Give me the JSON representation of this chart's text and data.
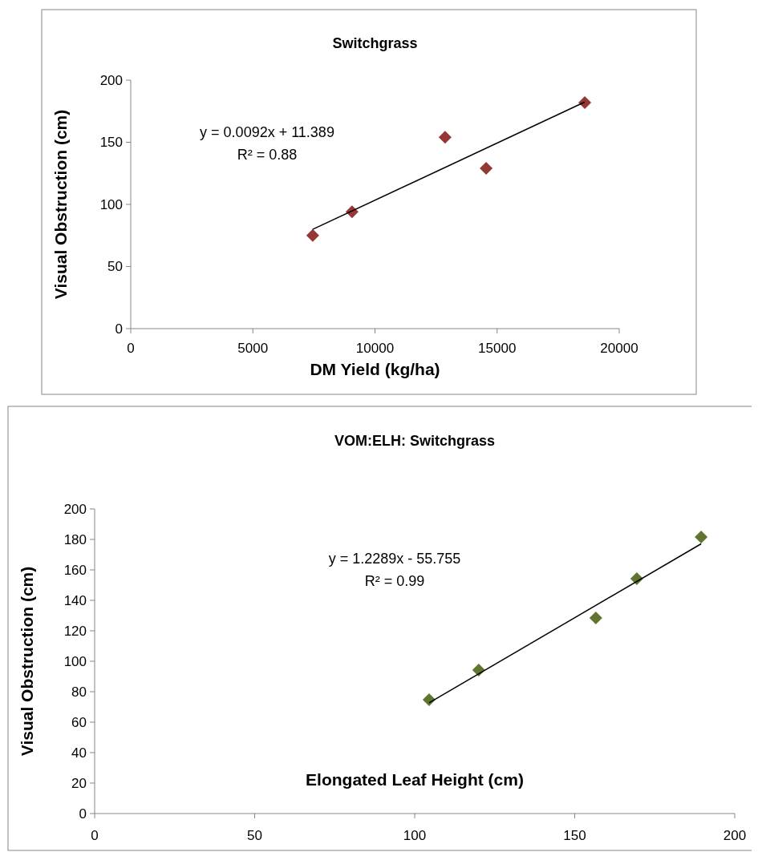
{
  "chart_data": [
    {
      "type": "scatter",
      "title": "Switchgrass",
      "xlabel": "DM Yield (kg/ha)",
      "ylabel": "Visual Obstruction (cm)",
      "xlim": [
        0,
        20000
      ],
      "xticks": [
        0,
        5000,
        10000,
        15000,
        20000
      ],
      "ylim": [
        0,
        200
      ],
      "yticks": [
        0,
        50,
        100,
        150,
        200
      ],
      "annotations": [
        "y = 0.0092x + 11.389",
        "R² = 0.88"
      ],
      "series": [
        {
          "color": "#953735",
          "marker": "diamond",
          "x": [
            7450,
            9060,
            12870,
            14550,
            18590
          ],
          "values": [
            75,
            94,
            154,
            129,
            182
          ]
        },
        {
          "type": "line",
          "marker": "none",
          "color": "#000000",
          "x": [
            7450,
            18590
          ],
          "values": [
            79.9,
            182.4
          ]
        }
      ]
    },
    {
      "type": "scatter",
      "title": "VOM:ELH: Switchgrass",
      "xlabel": "Elongated Leaf Height (cm)",
      "ylabel": "Visual Obstruction (cm)",
      "xlim": [
        0,
        200
      ],
      "xticks": [
        0,
        50,
        100,
        150,
        200
      ],
      "ylim": [
        0,
        200
      ],
      "yticks": [
        0,
        20,
        40,
        60,
        80,
        100,
        120,
        140,
        160,
        180,
        200
      ],
      "annotations": [
        "y = 1.2289x - 55.755",
        "R² = 0.99"
      ],
      "series": [
        {
          "color": "#5f7530",
          "marker": "diamond",
          "x": [
            104.5,
            120,
            156.6,
            169.4,
            189.5
          ],
          "values": [
            74.7,
            94.2,
            128.4,
            154.2,
            181.6
          ]
        },
        {
          "type": "line",
          "marker": "none",
          "color": "#000000",
          "x": [
            104.5,
            189.5
          ],
          "values": [
            72.7,
            177.1
          ]
        }
      ]
    }
  ]
}
